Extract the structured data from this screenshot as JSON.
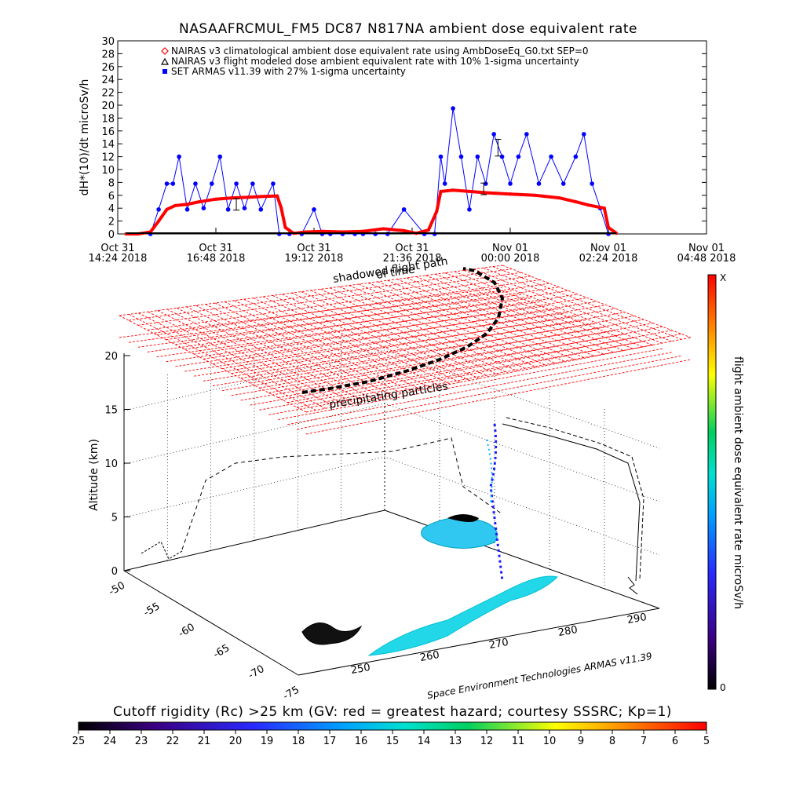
{
  "chart_data": [
    {
      "type": "line",
      "title": "NASAAFRCMUL_FM5 DC87 N817NA ambient dose equivalent rate",
      "ylabel": "dH*(10)/dt microSv/h",
      "ylim": [
        0,
        30
      ],
      "yticks": [
        "0",
        "2",
        "4",
        "6",
        "8",
        "10",
        "12",
        "14",
        "16",
        "18",
        "20",
        "22",
        "24",
        "26",
        "28",
        "30"
      ],
      "xlim_hours": [
        0,
        14.4
      ],
      "xtick_labels": [
        [
          "Oct 31",
          "14:24 2018"
        ],
        [
          "Oct 31",
          "16:48 2018"
        ],
        [
          "Oct 31",
          "19:12 2018"
        ],
        [
          "Oct 31",
          "21:36 2018"
        ],
        [
          "Nov 01",
          "00:00 2018"
        ],
        [
          "Nov 01",
          "02:24 2018"
        ],
        [
          "Nov 01",
          "04:48 2018"
        ]
      ],
      "legend": [
        "NAIRAS v3 climatological ambient dose equivalent rate using AmbDoseEq_G0.txt SEP=0",
        "NAIRAS v3 flight modeled dose ambient equivalent rate with 10% 1-sigma uncertainty",
        "SET ARMAS v11.39 with 27% 1-sigma uncertainty"
      ],
      "series": [
        {
          "name": "NAIRAS v3 climatological ambient dose equivalent rate using AmbDoseEq_G0.txt SEP=0",
          "color": "#ff0000",
          "x": [
            0.2,
            0.5,
            0.8,
            1.0,
            1.2,
            1.4,
            1.7,
            2.0,
            2.4,
            2.8,
            3.2,
            3.5,
            3.9,
            4.0,
            4.1,
            4.3,
            4.6,
            5.0,
            5.5,
            6.0,
            6.5,
            7.0,
            7.3,
            7.6,
            7.8,
            7.9,
            8.2,
            8.6,
            9.0,
            9.6,
            10.2,
            10.8,
            11.2,
            11.5,
            11.9,
            12.0,
            12.2
          ],
          "y": [
            0,
            0,
            0.3,
            2.0,
            3.8,
            4.4,
            4.6,
            5.0,
            5.4,
            5.6,
            5.7,
            5.8,
            5.9,
            4.0,
            1.0,
            0.1,
            0.3,
            0.4,
            0.3,
            0.4,
            0.8,
            0.5,
            0.1,
            0.6,
            3.5,
            6.6,
            6.8,
            6.6,
            6.4,
            6.2,
            6.0,
            5.6,
            5.0,
            4.5,
            4.0,
            1.0,
            0.1
          ]
        },
        {
          "name": "NAIRAS v3 flight modeled dose ambient equivalent rate with 10% 1-sigma uncertainty",
          "color": "#000000",
          "x": [
            0.2,
            2.0,
            4.0,
            6.0,
            8.0,
            10.0,
            12.2
          ],
          "y": [
            0,
            0,
            0,
            0,
            0,
            0,
            0
          ],
          "errorbars": [
            {
              "x": 2.9,
              "y": 4.6,
              "err": 0.9
            },
            {
              "x": 8.95,
              "y": 7.0,
              "err": 0.9
            },
            {
              "x": 9.3,
              "y": 13.4,
              "err": 1.3
            }
          ]
        },
        {
          "name": "SET ARMAS v11.39 with 27% 1-sigma uncertainty",
          "color": "#0000ff",
          "x": [
            0.8,
            1.0,
            1.2,
            1.35,
            1.5,
            1.7,
            1.9,
            2.1,
            2.3,
            2.5,
            2.7,
            2.9,
            3.1,
            3.3,
            3.5,
            3.8,
            3.95,
            4.2,
            4.5,
            4.8,
            5.0,
            5.2,
            5.5,
            5.8,
            6.0,
            6.3,
            6.6,
            7.0,
            7.5,
            7.75,
            7.9,
            8.0,
            8.2,
            8.4,
            8.6,
            8.8,
            9.0,
            9.2,
            9.4,
            9.6,
            9.8,
            10.0,
            10.3,
            10.6,
            10.9,
            11.2,
            11.4,
            11.6,
            11.8,
            12.0
          ],
          "y": [
            0,
            3.8,
            7.8,
            7.8,
            12.0,
            3.8,
            7.8,
            4.0,
            7.8,
            12.0,
            3.8,
            7.8,
            4.0,
            7.8,
            3.8,
            7.8,
            0,
            0,
            0,
            3.8,
            0,
            0,
            0,
            0,
            0,
            0,
            0,
            3.8,
            0,
            0,
            12.0,
            7.8,
            19.5,
            12.0,
            3.8,
            12.0,
            7.8,
            15.5,
            12.0,
            7.8,
            12.0,
            15.5,
            7.8,
            12.0,
            7.8,
            12.0,
            15.5,
            7.8,
            4.0,
            0
          ]
        }
      ]
    },
    {
      "type": "scatter",
      "projection": "3d",
      "zlabel": "Altitude (km)",
      "zticks": [
        "0",
        "5",
        "10",
        "15",
        "20"
      ],
      "lat_ticks": [
        "-50",
        "-55",
        "-60",
        "-65",
        "-70",
        "-75"
      ],
      "lon_ticks": [
        "250",
        "260",
        "270",
        "280",
        "290"
      ],
      "annotations": [
        "shadowed flight path",
        "of time",
        "precipitating particles"
      ],
      "credit": "Space Environment Technologies ARMAS v11.39",
      "colorbar": {
        "label": "flight ambient dose equivalent rate microSv/h",
        "top": "X",
        "bottom": "0",
        "colors": [
          "#000000",
          "#3a0080",
          "#2a2aff",
          "#00a0ff",
          "#00e0d0",
          "#00d060",
          "#ffff00",
          "#ff8000",
          "#ff0000"
        ]
      }
    },
    {
      "type": "heatmap",
      "title": "Cutoff rigidity (Rc) >25 km (GV: red = greatest hazard; courtesy SSSRC; Kp=1)",
      "ticks": [
        "25",
        "24",
        "23",
        "22",
        "21",
        "20",
        "19",
        "18",
        "17",
        "16",
        "15",
        "14",
        "13",
        "12",
        "11",
        "10",
        "9",
        "8",
        "7",
        "6",
        "5"
      ],
      "colors": [
        "#000000",
        "#3a0080",
        "#2a2aff",
        "#00a0ff",
        "#00e0d0",
        "#00d060",
        "#ffff00",
        "#ff8000",
        "#ff0000"
      ]
    }
  ]
}
